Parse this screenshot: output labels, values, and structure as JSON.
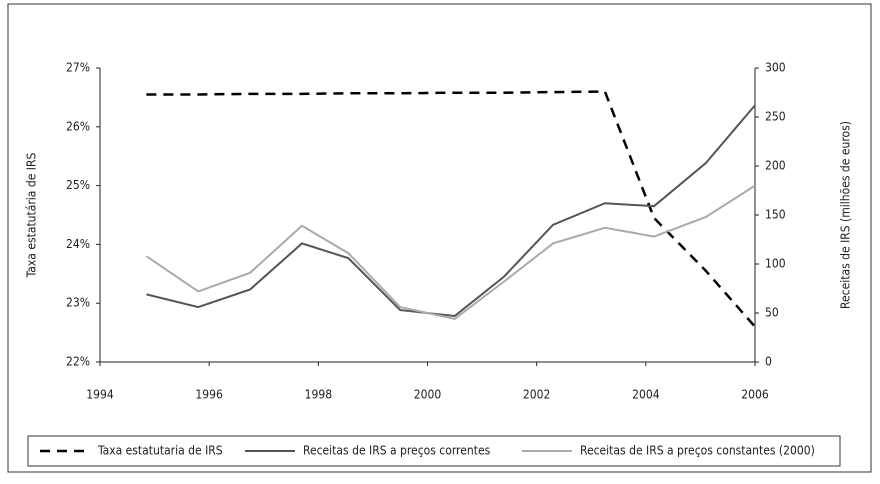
{
  "chart_data": {
    "type": "line",
    "x": [
      1994.85,
      1995.8,
      1996.75,
      1997.7,
      1998.55,
      1999.5,
      2000.5,
      2001.4,
      2002.3,
      2003.25,
      2004.15,
      2005.1,
      2006
    ],
    "xlim": [
      1994,
      2006
    ],
    "xticks": [
      1994,
      1996,
      1998,
      2000,
      2002,
      2004,
      2006
    ],
    "ylim": [
      22,
      27
    ],
    "yticks": [
      {
        "value": 22,
        "label": "22%"
      },
      {
        "value": 23,
        "label": "23%"
      },
      {
        "value": 24,
        "label": "24%"
      },
      {
        "value": 25,
        "label": "25%"
      },
      {
        "value": 26,
        "label": "26%"
      },
      {
        "value": 27,
        "label": "27%"
      }
    ],
    "y2lim": [
      0,
      300
    ],
    "y2ticks": [
      0,
      50,
      100,
      150,
      200,
      250,
      300
    ],
    "ylabel": "Taxa estatutária de IRS",
    "y2label": "Receitas de IRS (milhões de euros)",
    "legend": "bottom",
    "series": [
      {
        "name": "Taxa estatutaria de IRS",
        "color": "#000000",
        "dashed": true,
        "values": [
          26.55,
          26.55,
          26.56,
          26.56,
          26.57,
          26.57,
          26.58,
          26.58,
          26.59,
          26.6,
          24.45,
          23.55,
          22.6
        ]
      },
      {
        "name": "Receitas de IRS a preços correntes",
        "color": "#555555",
        "axis": "y2",
        "values": [
          69,
          56,
          74,
          121,
          106,
          53,
          47,
          87,
          140,
          162,
          159,
          203,
          262
        ]
      },
      {
        "name": "Receitas de IRS a preços constantes (2000)",
        "color": "#aaaaaa",
        "axis": "y2",
        "values": [
          108,
          72,
          91,
          139,
          111,
          56,
          44,
          82,
          121,
          137,
          128,
          148,
          180
        ]
      }
    ]
  }
}
